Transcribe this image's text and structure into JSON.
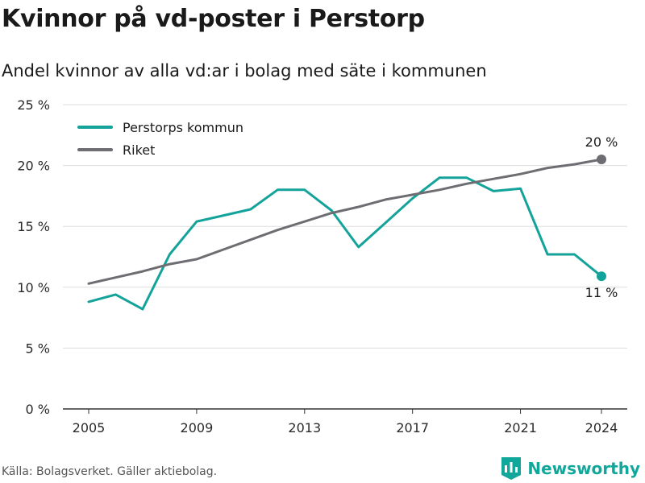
{
  "title": "Kvinnor på vd-poster i Perstorp",
  "subtitle": "Andel kvinnor av alla vd:ar i bolag med säte i kommunen",
  "source": "Källa: Bolagsverket. Gäller aktiebolag.",
  "brand": {
    "name": "Newsworthy",
    "icon": "newsworthy-logo-icon"
  },
  "colors": {
    "municipality": "#14a39a",
    "country": "#6e6e72",
    "grid": "#dddddd",
    "axis": "#333333"
  },
  "chart_data": {
    "type": "line",
    "x": [
      2005,
      2006,
      2007,
      2008,
      2009,
      2010,
      2011,
      2012,
      2013,
      2014,
      2015,
      2016,
      2017,
      2018,
      2019,
      2020,
      2021,
      2022,
      2023,
      2024
    ],
    "xticks": [
      2005,
      2009,
      2013,
      2017,
      2021,
      2024
    ],
    "yticks": [
      0,
      5,
      10,
      15,
      20,
      25
    ],
    "ylim": [
      0,
      25
    ],
    "tick_suffix": " %",
    "series": [
      {
        "name": "Perstorps kommun",
        "color": "#14a39a",
        "values": [
          8.8,
          9.4,
          8.2,
          12.7,
          15.4,
          15.9,
          16.4,
          18.0,
          18.0,
          16.3,
          13.3,
          15.3,
          17.3,
          19.0,
          19.0,
          17.9,
          18.1,
          12.7,
          12.7,
          10.9
        ],
        "end_label": "11 %"
      },
      {
        "name": "Riket",
        "color": "#6e6e72",
        "values": [
          10.3,
          10.8,
          11.3,
          11.9,
          12.3,
          13.1,
          13.9,
          14.7,
          15.4,
          16.1,
          16.6,
          17.2,
          17.6,
          18.0,
          18.5,
          18.9,
          19.3,
          19.8,
          20.1,
          20.5
        ],
        "end_label": "20 %"
      }
    ],
    "legend_position": "top-left",
    "grid": true,
    "xlabel": "",
    "ylabel": ""
  }
}
